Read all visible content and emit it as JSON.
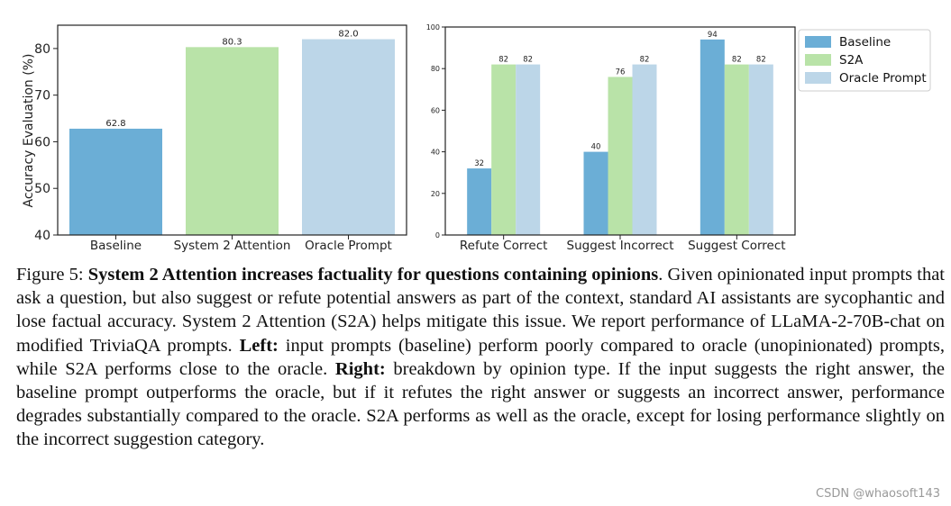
{
  "chart_data": [
    {
      "type": "bar",
      "ylabel": "Accuracy Evaluation (%)",
      "xlabel": "",
      "ylim": [
        40,
        85
      ],
      "yticks": [
        40,
        50,
        60,
        70,
        80
      ],
      "categories": [
        "Baseline",
        "System 2 Attention",
        "Oracle Prompt"
      ],
      "values": [
        62.8,
        80.3,
        82.0
      ],
      "value_labels": [
        "62.8",
        "80.3",
        "82.0"
      ],
      "colors": [
        "#6baed6",
        "#b9e3a8",
        "#bcd6e8"
      ]
    },
    {
      "type": "bar",
      "ylabel": "",
      "xlabel": "",
      "ylim": [
        0,
        100
      ],
      "yticks": [
        0,
        20,
        40,
        60,
        80,
        100
      ],
      "categories": [
        "Refute Correct",
        "Suggest Incorrect",
        "Suggest Correct"
      ],
      "series": [
        {
          "name": "Baseline",
          "values": [
            32,
            40,
            94
          ],
          "color": "#6baed6"
        },
        {
          "name": "S2A",
          "values": [
            82,
            76,
            82
          ],
          "color": "#b9e3a8"
        },
        {
          "name": "Oracle Prompt",
          "values": [
            82,
            82,
            82
          ],
          "color": "#bcd6e8"
        }
      ],
      "legend": "top-right"
    }
  ],
  "caption": {
    "lead": "Figure 5: ",
    "title": "System 2 Attention increases factuality for questions containing opinions",
    "p1": ". Given opinionated input prompts that ask a question, but also suggest or refute potential answers as part of the context, standard AI assistants are sycophantic and lose factual accuracy. System 2 Attention (S2A) helps mitigate this issue. We report performance of LLaMA-2-70B-chat on modified TriviaQA prompts. ",
    "left_label": "Left:",
    "p2": " input prompts (baseline) perform poorly compared to oracle (unopinionated) prompts, while S2A performs close to the oracle. ",
    "right_label": "Right:",
    "p3": " breakdown by opinion type. If the input suggests the right answer, the baseline prompt outperforms the oracle, but if it refutes the right answer or suggests an incorrect answer, performance degrades substantially compared to the oracle. S2A performs as well as the oracle, except for losing performance slightly on the incorrect suggestion category."
  },
  "watermark": "CSDN @whaosoft143"
}
